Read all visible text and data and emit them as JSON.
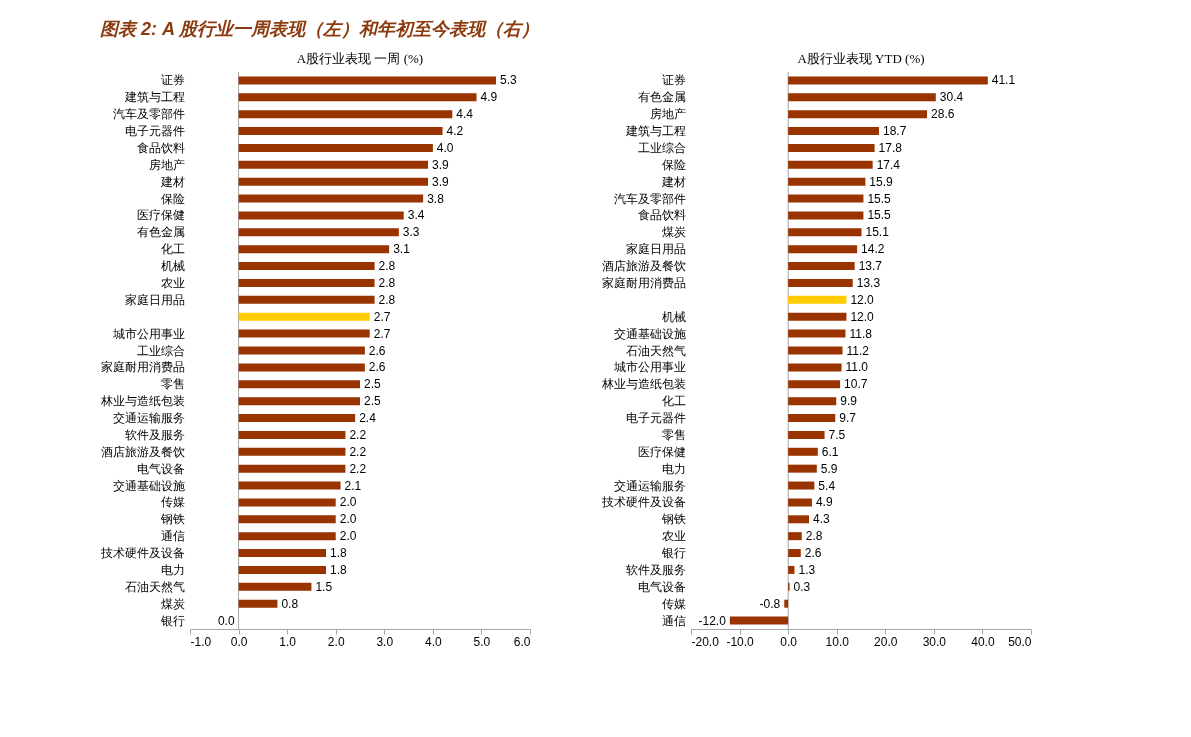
{
  "chart_data": [
    {
      "type": "bar",
      "orientation": "horizontal",
      "title": "A股行业表现 一周 (%)",
      "annotations": [
        "图表 2: A 股行业一周表现（左）和年初至今表现（右）"
      ],
      "categories": [
        "证券",
        "建筑与工程",
        "汽车及零部件",
        "电子元器件",
        "食品饮料",
        "房地产",
        "建材",
        "保险",
        "医疗保健",
        "有色金属",
        "化工",
        "机械",
        "农业",
        "家庭日用品",
        null,
        "城市公用事业",
        "工业综合",
        "家庭耐用消费品",
        "零售",
        "林业与造纸包装",
        "交通运输服务",
        "软件及服务",
        "酒店旅游及餐饮",
        "电气设备",
        "交通基础设施",
        "传媒",
        "钢铁",
        "通信",
        "技术硬件及设备",
        "电力",
        "石油天然气",
        "煤炭",
        "银行"
      ],
      "values": [
        5.3,
        4.9,
        4.4,
        4.2,
        4.0,
        3.9,
        3.9,
        3.8,
        3.4,
        3.3,
        3.1,
        2.8,
        2.8,
        2.8,
        2.7,
        2.7,
        2.6,
        2.6,
        2.5,
        2.5,
        2.4,
        2.2,
        2.2,
        2.2,
        2.1,
        2.0,
        2.0,
        2.0,
        1.8,
        1.8,
        1.5,
        0.8,
        0.0
      ],
      "value_labels": [
        "5.3",
        "4.9",
        "4.4",
        "4.2",
        "4.0",
        "3.9",
        "3.9",
        "3.8",
        "3.4",
        "3.3",
        "3.1",
        "2.8",
        "2.8",
        "2.8",
        "2.7",
        "2.7",
        "2.6",
        "2.6",
        "2.5",
        "2.5",
        "2.4",
        "2.2",
        "2.2",
        "2.2",
        "2.1",
        "2.0",
        "2.0",
        "2.0",
        "1.8",
        "1.8",
        "1.5",
        "0.8",
        "0.0"
      ],
      "colors": [
        "#993300",
        "#993300",
        "#993300",
        "#993300",
        "#993300",
        "#993300",
        "#993300",
        "#993300",
        "#993300",
        "#993300",
        "#993300",
        "#993300",
        "#993300",
        "#993300",
        "#ffcc00",
        "#993300",
        "#993300",
        "#993300",
        "#993300",
        "#993300",
        "#993300",
        "#993300",
        "#993300",
        "#993300",
        "#993300",
        "#993300",
        "#993300",
        "#993300",
        "#993300",
        "#993300",
        "#993300",
        "#993300",
        "#993300"
      ],
      "xlim": [
        -1,
        6
      ],
      "xticks": [
        {
          "value": -1,
          "label": "-1.0"
        },
        {
          "value": 0,
          "label": "0.0"
        },
        {
          "value": 1,
          "label": "1.0"
        },
        {
          "value": 2,
          "label": "2.0"
        },
        {
          "value": 3,
          "label": "3.0"
        },
        {
          "value": 4,
          "label": "4.0"
        },
        {
          "value": 5,
          "label": "5.0"
        },
        {
          "value": 6,
          "label": "6.0"
        }
      ]
    },
    {
      "type": "bar",
      "orientation": "horizontal",
      "title": "A股行业表现 YTD (%)",
      "categories": [
        "证券",
        "有色金属",
        "房地产",
        "建筑与工程",
        "工业综合",
        "保险",
        "建材",
        "汽车及零部件",
        "食品饮料",
        "煤炭",
        "家庭日用品",
        "酒店旅游及餐饮",
        "家庭耐用消费品",
        null,
        "机械",
        "交通基础设施",
        "石油天然气",
        "城市公用事业",
        "林业与造纸包装",
        "化工",
        "电子元器件",
        "零售",
        "医疗保健",
        "电力",
        "交通运输服务",
        "技术硬件及设备",
        "钢铁",
        "农业",
        "银行",
        "软件及服务",
        "电气设备",
        "传媒",
        "通信"
      ],
      "values": [
        41.1,
        30.4,
        28.6,
        18.7,
        17.8,
        17.4,
        15.9,
        15.5,
        15.5,
        15.1,
        14.2,
        13.7,
        13.3,
        12.0,
        12.0,
        11.8,
        11.2,
        11.0,
        10.7,
        9.9,
        9.7,
        7.5,
        6.1,
        5.9,
        5.4,
        4.9,
        4.3,
        2.8,
        2.6,
        1.3,
        0.3,
        -0.8,
        -12.0
      ],
      "value_labels": [
        "41.1",
        "30.4",
        "28.6",
        "18.7",
        "17.8",
        "17.4",
        "15.9",
        "15.5",
        "15.5",
        "15.1",
        "14.2",
        "13.7",
        "13.3",
        "12.0",
        "12.0",
        "11.8",
        "11.2",
        "11.0",
        "10.7",
        "9.9",
        "9.7",
        "7.5",
        "6.1",
        "5.9",
        "5.4",
        "4.9",
        "4.3",
        "2.8",
        "2.6",
        "1.3",
        "0.3",
        "-0.8",
        "-12.0"
      ],
      "colors": [
        "#993300",
        "#993300",
        "#993300",
        "#993300",
        "#993300",
        "#993300",
        "#993300",
        "#993300",
        "#993300",
        "#993300",
        "#993300",
        "#993300",
        "#993300",
        "#ffcc00",
        "#993300",
        "#993300",
        "#993300",
        "#993300",
        "#993300",
        "#993300",
        "#993300",
        "#993300",
        "#993300",
        "#993300",
        "#993300",
        "#993300",
        "#993300",
        "#993300",
        "#993300",
        "#993300",
        "#993300",
        "#993300",
        "#993300"
      ],
      "xlim": [
        -20,
        50
      ],
      "xticks": [
        {
          "value": -20,
          "label": "-20.0"
        },
        {
          "value": -10,
          "label": "-10.0"
        },
        {
          "value": 0,
          "label": "0.0"
        },
        {
          "value": 10,
          "label": "10.0"
        },
        {
          "value": 20,
          "label": "20.0"
        },
        {
          "value": 30,
          "label": "30.0"
        },
        {
          "value": 40,
          "label": "40.0"
        },
        {
          "value": 50,
          "label": "50.0"
        }
      ]
    }
  ]
}
